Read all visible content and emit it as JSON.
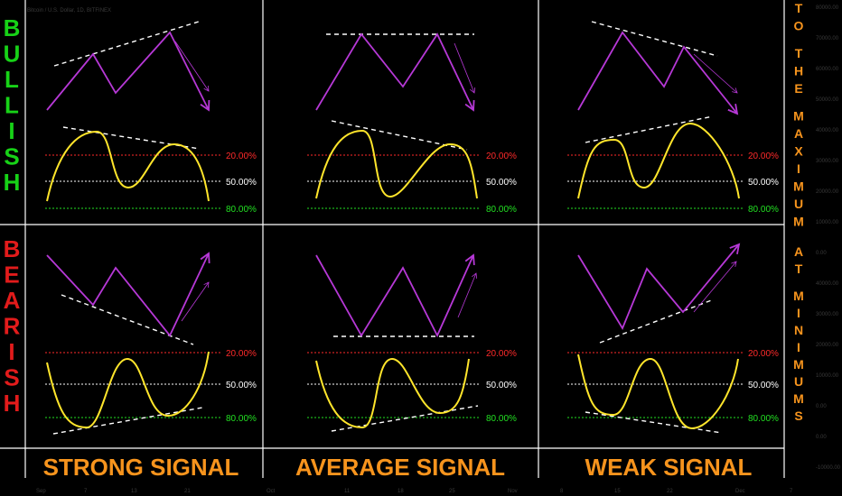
{
  "symbol_header": "Bitcoin / U.S. Dollar, 1D, BITFINEX",
  "left_labels": [
    {
      "text": "BULLISH",
      "color": "#17d217"
    },
    {
      "text": "BEARISH",
      "color": "#e21b1b"
    }
  ],
  "right_labels": [
    "TO THE MAXIMUM",
    "AT MINIMUMS"
  ],
  "columns": [
    "STRONG SIGNAL",
    "AVERAGE SIGNAL",
    "WEAK SIGNAL"
  ],
  "levels": [
    {
      "label": "20.00%",
      "color": "#ff2a2a"
    },
    {
      "label": "50.00%",
      "color": "#ffffff"
    },
    {
      "label": "80.00%",
      "color": "#22e022"
    }
  ],
  "price_axis": [
    "80000.00",
    "70000.00",
    "60000.00",
    "50000.00",
    "40000.00",
    "30000.00",
    "20000.00",
    "10000.00",
    "0.00",
    "40000.00",
    "30000.00",
    "20000.00",
    "10000.00",
    "0.00",
    "0.00",
    "-10000.00"
  ],
  "time_axis": [
    "Sep",
    "7",
    "13",
    "21",
    "Oct",
    "11",
    "18",
    "25",
    "Nov",
    "8",
    "15",
    "22",
    "Dec",
    "7"
  ],
  "colors": {
    "price_line": "#b638d6",
    "oscillator": "#ffe52b",
    "divergence": "#ffffff",
    "grid": "#ffffff",
    "title": "#f7941d"
  }
}
